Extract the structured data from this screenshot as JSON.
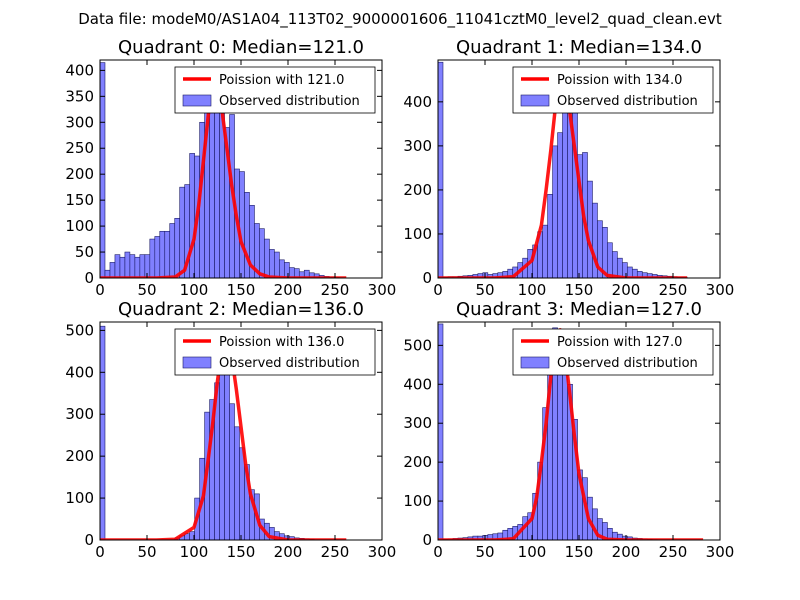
{
  "figure_title": "Data file: modeM0/AS1A04_113T02_9000001606_11041cztM0_level2_quad_clean.evt",
  "colors": {
    "bar_fill": "#8080ff",
    "bar_edge": "#1a1a66",
    "poisson_line": "#ff0000",
    "axes": "#000000",
    "background": "#ffffff"
  },
  "chart_data": [
    {
      "type": "bar",
      "title": "Quadrant 0: Median=121.0",
      "xlim": [
        0,
        300
      ],
      "ylim": [
        0,
        420
      ],
      "xticks": [
        "0",
        "50",
        "100",
        "150",
        "200",
        "250",
        "300"
      ],
      "yticks": [
        "0",
        "50",
        "100",
        "150",
        "200",
        "250",
        "300",
        "350",
        "400"
      ],
      "legend": {
        "position": "top-right",
        "entries": [
          "Poission with 121.0",
          "Observed distribution"
        ]
      },
      "bin_width": 5.3,
      "bins_x": [
        0,
        5.3,
        10.6,
        15.9,
        21.2,
        26.5,
        31.8,
        37.1,
        42.4,
        47.7,
        53,
        58.3,
        63.6,
        68.9,
        74.2,
        79.5,
        84.8,
        90.1,
        95.4,
        100.7,
        106,
        111.3,
        116.6,
        121.9,
        127.2,
        132.5,
        137.8,
        143.1,
        148.4,
        153.7,
        159,
        164.3,
        169.6,
        174.9,
        180.2,
        185.5,
        190.8,
        196.1,
        201.4,
        206.7,
        212,
        217.3,
        222.6,
        227.9,
        233.2,
        238.5,
        243.8,
        249.1
      ],
      "bins_y": [
        415,
        15,
        30,
        45,
        40,
        50,
        45,
        40,
        45,
        45,
        75,
        80,
        90,
        90,
        105,
        115,
        175,
        180,
        240,
        235,
        300,
        320,
        370,
        395,
        340,
        290,
        315,
        210,
        205,
        165,
        140,
        105,
        95,
        75,
        55,
        50,
        35,
        30,
        20,
        18,
        12,
        15,
        10,
        8,
        5,
        3,
        2,
        1
      ],
      "poisson_x": [
        0,
        20,
        40,
        60,
        80,
        90,
        100,
        105,
        110,
        115,
        120,
        125,
        130,
        135,
        140,
        145,
        150,
        160,
        170,
        180,
        200,
        230,
        262
      ],
      "poisson_y": [
        0,
        0,
        0,
        0,
        2,
        15,
        75,
        140,
        225,
        310,
        395,
        370,
        320,
        250,
        180,
        120,
        70,
        25,
        8,
        2,
        0,
        0,
        0
      ]
    },
    {
      "type": "bar",
      "title": "Quadrant 1: Median=134.0",
      "xlim": [
        0,
        300
      ],
      "ylim": [
        0,
        495
      ],
      "xticks": [
        "0",
        "50",
        "100",
        "150",
        "200",
        "250",
        "300"
      ],
      "yticks": [
        "0",
        "100",
        "200",
        "300",
        "400"
      ],
      "legend": {
        "position": "top-right",
        "entries": [
          "Poission with 134.0",
          "Observed distribution"
        ]
      },
      "bin_width": 5.3,
      "bins_x": [
        0,
        5.3,
        10.6,
        15.9,
        21.2,
        26.5,
        31.8,
        37.1,
        42.4,
        47.7,
        53,
        58.3,
        63.6,
        68.9,
        74.2,
        79.5,
        84.8,
        90.1,
        95.4,
        100.7,
        106,
        111.3,
        116.6,
        121.9,
        127.2,
        132.5,
        137.8,
        143.1,
        148.4,
        153.7,
        159,
        164.3,
        169.6,
        174.9,
        180.2,
        185.5,
        190.8,
        196.1,
        201.4,
        206.7,
        212,
        217.3,
        222.6,
        227.9,
        233.2,
        238.5,
        243.8,
        249.1,
        254.4,
        259.7
      ],
      "bins_y": [
        490,
        2,
        3,
        3,
        4,
        5,
        6,
        8,
        10,
        12,
        8,
        10,
        12,
        15,
        20,
        25,
        35,
        45,
        65,
        75,
        105,
        120,
        190,
        300,
        330,
        380,
        470,
        420,
        280,
        285,
        220,
        170,
        130,
        115,
        80,
        60,
        45,
        35,
        25,
        20,
        15,
        12,
        10,
        8,
        6,
        5,
        4,
        3,
        2,
        2
      ],
      "poisson_x": [
        0,
        20,
        40,
        60,
        80,
        100,
        110,
        115,
        120,
        125,
        130,
        135,
        140,
        145,
        150,
        155,
        160,
        170,
        180,
        200,
        230,
        265
      ],
      "poisson_y": [
        0,
        0,
        0,
        0,
        3,
        40,
        120,
        200,
        290,
        390,
        460,
        440,
        380,
        300,
        220,
        140,
        85,
        25,
        6,
        0,
        0,
        0
      ]
    },
    {
      "type": "bar",
      "title": "Quadrant 2: Median=136.0",
      "xlim": [
        0,
        300
      ],
      "ylim": [
        0,
        520
      ],
      "xticks": [
        "0",
        "50",
        "100",
        "150",
        "200",
        "250",
        "300"
      ],
      "yticks": [
        "0",
        "100",
        "200",
        "300",
        "400",
        "500"
      ],
      "legend": {
        "position": "top-right",
        "entries": [
          "Poission with 136.0",
          "Observed distribution"
        ]
      },
      "bin_width": 5.3,
      "bins_x": [
        0,
        5.3,
        10.6,
        15.9,
        21.2,
        26.5,
        31.8,
        37.1,
        42.4,
        47.7,
        53,
        58.3,
        63.6,
        68.9,
        74.2,
        79.5,
        84.8,
        90.1,
        95.4,
        100.7,
        106,
        111.3,
        116.6,
        121.9,
        127.2,
        132.5,
        137.8,
        143.1,
        148.4,
        153.7,
        159,
        164.3,
        169.6,
        174.9,
        180.2,
        185.5,
        190.8,
        196.1,
        201.4,
        206.7,
        212,
        217.3,
        222.6
      ],
      "bins_y": [
        510,
        0,
        0,
        0,
        0,
        0,
        0,
        0,
        0,
        0,
        0,
        0,
        0,
        0,
        0,
        5,
        10,
        15,
        20,
        100,
        195,
        305,
        335,
        375,
        485,
        470,
        325,
        270,
        220,
        180,
        120,
        110,
        50,
        40,
        30,
        20,
        15,
        10,
        8,
        5,
        4,
        3,
        2
      ],
      "poisson_x": [
        0,
        20,
        40,
        60,
        80,
        100,
        110,
        115,
        120,
        125,
        130,
        135,
        140,
        145,
        150,
        155,
        160,
        170,
        180,
        200,
        230,
        262
      ],
      "poisson_y": [
        0,
        0,
        0,
        0,
        2,
        30,
        105,
        190,
        280,
        380,
        460,
        480,
        440,
        360,
        270,
        180,
        110,
        35,
        8,
        0,
        0,
        0
      ]
    },
    {
      "type": "bar",
      "title": "Quadrant 3: Median=127.0",
      "xlim": [
        0,
        300
      ],
      "ylim": [
        0,
        560
      ],
      "xticks": [
        "0",
        "50",
        "100",
        "150",
        "200",
        "250",
        "300"
      ],
      "yticks": [
        "0",
        "100",
        "200",
        "300",
        "400",
        "500"
      ],
      "legend": {
        "position": "top-right",
        "entries": [
          "Poission with 127.0",
          "Observed distribution"
        ]
      },
      "bin_width": 5.3,
      "bins_x": [
        0,
        5.3,
        10.6,
        15.9,
        21.2,
        26.5,
        31.8,
        37.1,
        42.4,
        47.7,
        53,
        58.3,
        63.6,
        68.9,
        74.2,
        79.5,
        84.8,
        90.1,
        95.4,
        100.7,
        106,
        111.3,
        116.6,
        121.9,
        127.2,
        132.5,
        137.8,
        143.1,
        148.4,
        153.7,
        159,
        164.3,
        169.6,
        174.9,
        180.2,
        185.5,
        190.8,
        196.1,
        201.4,
        206.7,
        212,
        217.3,
        222.6,
        227.9
      ],
      "bins_y": [
        555,
        2,
        3,
        4,
        5,
        6,
        8,
        10,
        10,
        12,
        14,
        16,
        18,
        25,
        30,
        35,
        40,
        60,
        70,
        120,
        200,
        340,
        530,
        545,
        500,
        440,
        400,
        310,
        180,
        160,
        110,
        80,
        55,
        45,
        30,
        20,
        15,
        10,
        8,
        5,
        4,
        3,
        2,
        1
      ],
      "poisson_x": [
        0,
        20,
        40,
        60,
        80,
        100,
        105,
        110,
        115,
        120,
        125,
        130,
        135,
        140,
        145,
        150,
        160,
        170,
        180,
        200,
        240,
        282
      ],
      "poisson_y": [
        0,
        0,
        0,
        0,
        3,
        55,
        110,
        200,
        300,
        420,
        520,
        540,
        480,
        380,
        270,
        170,
        55,
        12,
        2,
        0,
        0,
        0
      ]
    }
  ]
}
